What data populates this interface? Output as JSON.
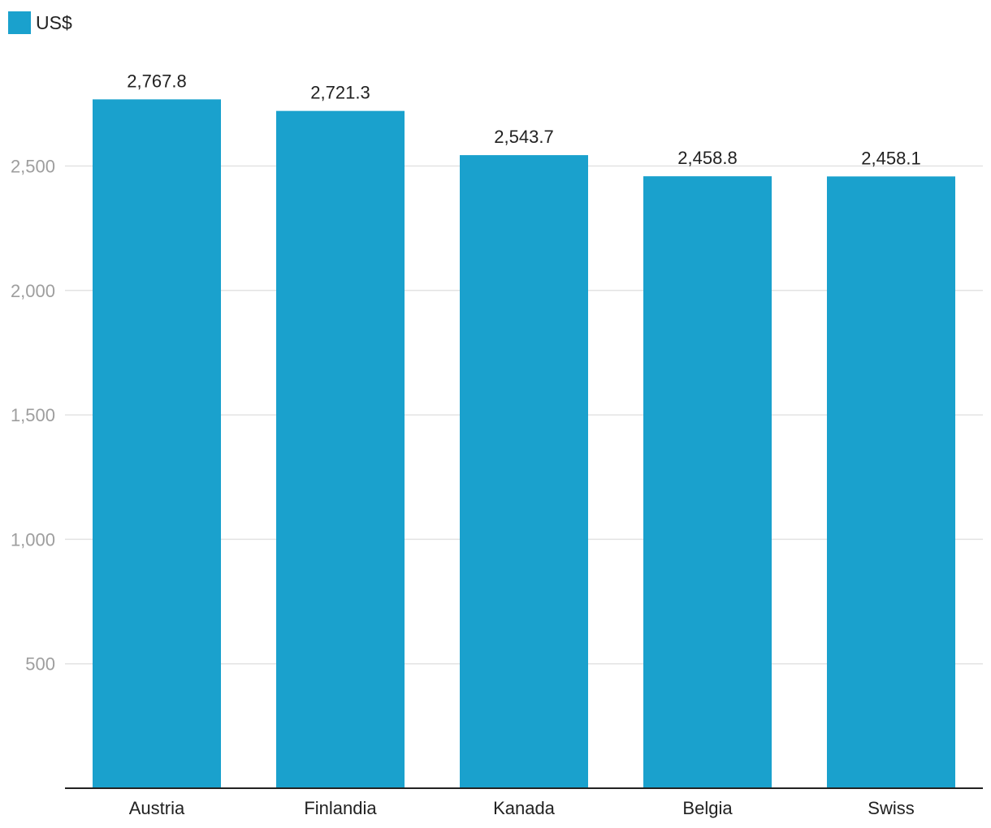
{
  "legend": {
    "label": "US$",
    "color": "#1aa1cd"
  },
  "chart_data": {
    "type": "bar",
    "categories": [
      "Austria",
      "Finlandia",
      "Kanada",
      "Belgia",
      "Swiss"
    ],
    "series": [
      {
        "name": "US$",
        "values": [
          2767.8,
          2721.3,
          2543.7,
          2458.8,
          2458.1
        ],
        "color": "#1aa1cd"
      }
    ],
    "data_labels": [
      "2,767.8",
      "2,721.3",
      "2,543.7",
      "2,458.8",
      "2,458.1"
    ],
    "y_ticks": [
      500,
      1000,
      1500,
      2000,
      2500
    ],
    "y_tick_labels": [
      "500",
      "1,000",
      "1,500",
      "2,000",
      "2,500"
    ],
    "ylim": [
      0,
      2800
    ],
    "grid": true,
    "legend_position": "top-left"
  }
}
